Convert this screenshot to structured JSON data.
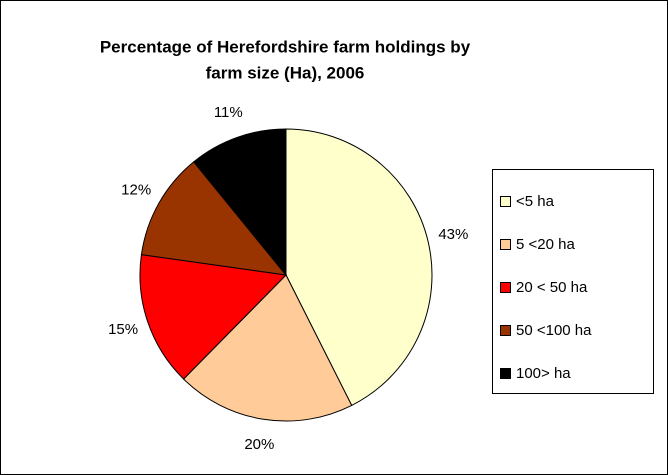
{
  "chart_data": {
    "type": "pie",
    "title": [
      "Percentage of Herefordshire farm holdings by",
      "farm size (Ha), 2006"
    ],
    "categories": [
      "<5 ha",
      "5 <20 ha",
      "20 < 50 ha",
      "50 <100 ha",
      "100> ha"
    ],
    "values": [
      43,
      20,
      15,
      12,
      11
    ],
    "value_labels": [
      "43%",
      "20%",
      "15%",
      "12%",
      "11%"
    ],
    "colors": [
      "#ffffcc",
      "#ffcc99",
      "#ff0000",
      "#993300",
      "#000000"
    ],
    "legend": "right"
  }
}
